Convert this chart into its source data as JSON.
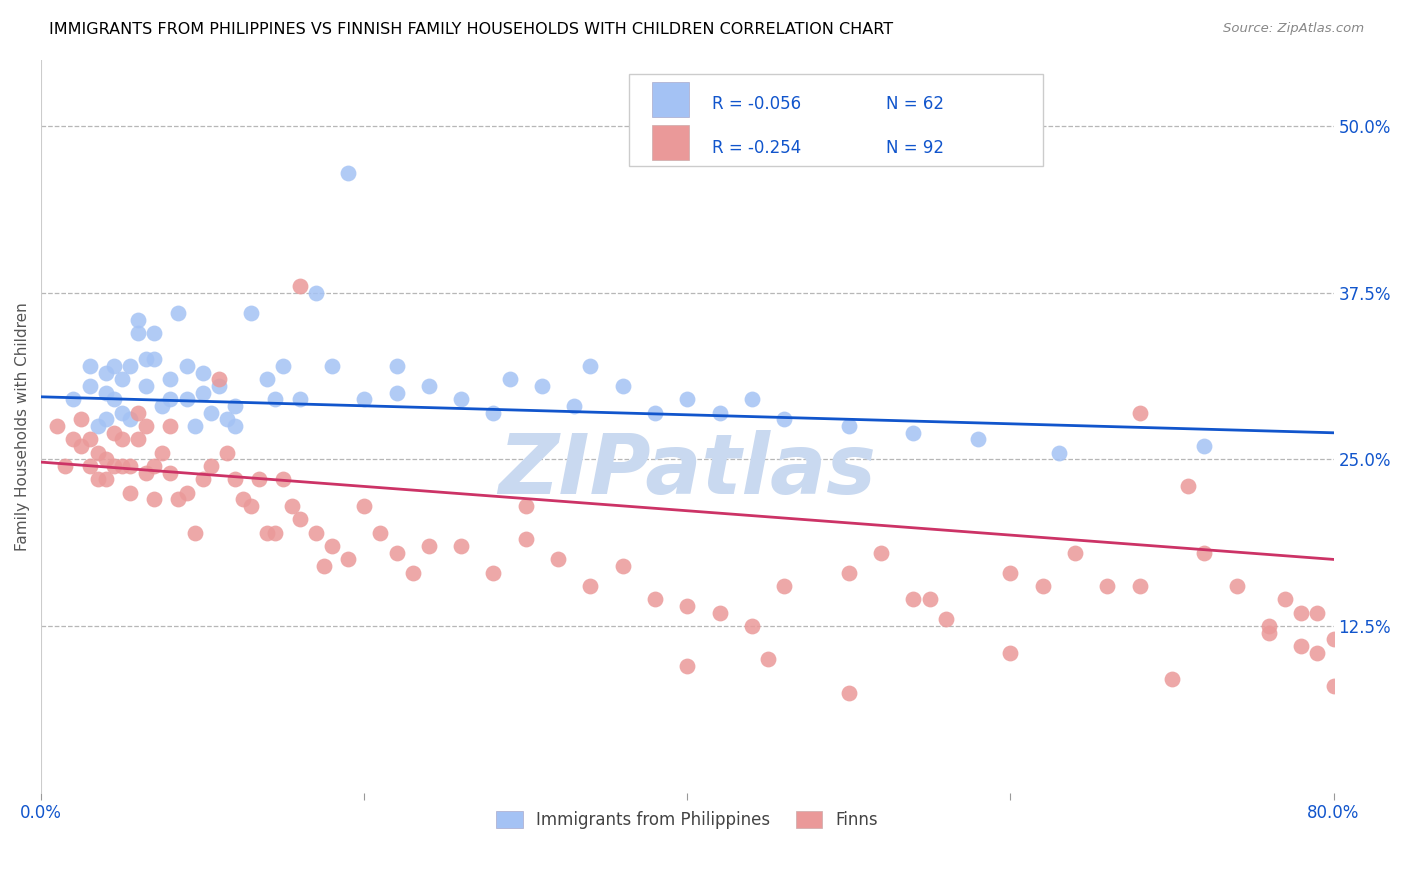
{
  "title": "IMMIGRANTS FROM PHILIPPINES VS FINNISH FAMILY HOUSEHOLDS WITH CHILDREN CORRELATION CHART",
  "source": "Source: ZipAtlas.com",
  "ylabel": "Family Households with Children",
  "ytick_labels": [
    "50.0%",
    "37.5%",
    "25.0%",
    "12.5%"
  ],
  "ytick_values": [
    0.5,
    0.375,
    0.25,
    0.125
  ],
  "legend_blue_r": "-0.056",
  "legend_blue_n": "62",
  "legend_pink_r": "-0.254",
  "legend_pink_n": "92",
  "legend_label_blue": "Immigrants from Philippines",
  "legend_label_pink": "Finns",
  "blue_color": "#a4c2f4",
  "pink_color": "#ea9999",
  "blue_line_color": "#1155cc",
  "pink_line_color": "#cc3366",
  "background_color": "#ffffff",
  "grid_color": "#b7b7b7",
  "title_color": "#000000",
  "axis_label_color": "#1155cc",
  "ylabel_color": "#555555",
  "source_color": "#888888",
  "watermark": "ZIPatlas",
  "watermark_color": "#c9d9f0",
  "xlim": [
    0.0,
    0.8
  ],
  "ylim": [
    0.0,
    0.55
  ],
  "blue_line_x0": 0.0,
  "blue_line_y0": 0.297,
  "blue_line_x1": 0.8,
  "blue_line_y1": 0.27,
  "pink_line_x0": 0.0,
  "pink_line_y0": 0.248,
  "pink_line_x1": 0.8,
  "pink_line_y1": 0.175,
  "blue_x": [
    0.02,
    0.03,
    0.03,
    0.035,
    0.04,
    0.04,
    0.04,
    0.045,
    0.045,
    0.05,
    0.05,
    0.055,
    0.055,
    0.06,
    0.06,
    0.065,
    0.065,
    0.07,
    0.07,
    0.075,
    0.08,
    0.08,
    0.085,
    0.09,
    0.09,
    0.095,
    0.1,
    0.1,
    0.105,
    0.11,
    0.115,
    0.12,
    0.12,
    0.13,
    0.14,
    0.145,
    0.15,
    0.16,
    0.17,
    0.18,
    0.19,
    0.2,
    0.22,
    0.22,
    0.24,
    0.26,
    0.28,
    0.29,
    0.31,
    0.33,
    0.34,
    0.36,
    0.38,
    0.4,
    0.42,
    0.44,
    0.46,
    0.5,
    0.54,
    0.58,
    0.63,
    0.72
  ],
  "blue_y": [
    0.295,
    0.305,
    0.32,
    0.275,
    0.3,
    0.315,
    0.28,
    0.32,
    0.295,
    0.31,
    0.285,
    0.32,
    0.28,
    0.345,
    0.355,
    0.325,
    0.305,
    0.345,
    0.325,
    0.29,
    0.31,
    0.295,
    0.36,
    0.32,
    0.295,
    0.275,
    0.3,
    0.315,
    0.285,
    0.305,
    0.28,
    0.29,
    0.275,
    0.36,
    0.31,
    0.295,
    0.32,
    0.295,
    0.375,
    0.32,
    0.465,
    0.295,
    0.32,
    0.3,
    0.305,
    0.295,
    0.285,
    0.31,
    0.305,
    0.29,
    0.32,
    0.305,
    0.285,
    0.295,
    0.285,
    0.295,
    0.28,
    0.275,
    0.27,
    0.265,
    0.255,
    0.26
  ],
  "pink_x": [
    0.01,
    0.015,
    0.02,
    0.025,
    0.025,
    0.03,
    0.03,
    0.035,
    0.035,
    0.04,
    0.04,
    0.045,
    0.045,
    0.05,
    0.05,
    0.055,
    0.055,
    0.06,
    0.06,
    0.065,
    0.065,
    0.07,
    0.07,
    0.075,
    0.08,
    0.08,
    0.085,
    0.09,
    0.095,
    0.1,
    0.105,
    0.11,
    0.115,
    0.12,
    0.125,
    0.13,
    0.135,
    0.14,
    0.145,
    0.15,
    0.155,
    0.16,
    0.16,
    0.17,
    0.175,
    0.18,
    0.19,
    0.2,
    0.21,
    0.22,
    0.23,
    0.24,
    0.26,
    0.28,
    0.3,
    0.32,
    0.34,
    0.36,
    0.38,
    0.4,
    0.42,
    0.44,
    0.46,
    0.5,
    0.52,
    0.54,
    0.56,
    0.6,
    0.62,
    0.64,
    0.66,
    0.68,
    0.7,
    0.72,
    0.74,
    0.76,
    0.77,
    0.78,
    0.79,
    0.8,
    0.76,
    0.78,
    0.79,
    0.8,
    0.68,
    0.71,
    0.6,
    0.55,
    0.5,
    0.45,
    0.4,
    0.3
  ],
  "pink_y": [
    0.275,
    0.245,
    0.265,
    0.28,
    0.26,
    0.265,
    0.245,
    0.255,
    0.235,
    0.25,
    0.235,
    0.27,
    0.245,
    0.265,
    0.245,
    0.245,
    0.225,
    0.285,
    0.265,
    0.275,
    0.24,
    0.245,
    0.22,
    0.255,
    0.275,
    0.24,
    0.22,
    0.225,
    0.195,
    0.235,
    0.245,
    0.31,
    0.255,
    0.235,
    0.22,
    0.215,
    0.235,
    0.195,
    0.195,
    0.235,
    0.215,
    0.205,
    0.38,
    0.195,
    0.17,
    0.185,
    0.175,
    0.215,
    0.195,
    0.18,
    0.165,
    0.185,
    0.185,
    0.165,
    0.19,
    0.175,
    0.155,
    0.17,
    0.145,
    0.14,
    0.135,
    0.125,
    0.155,
    0.165,
    0.18,
    0.145,
    0.13,
    0.165,
    0.155,
    0.18,
    0.155,
    0.155,
    0.085,
    0.18,
    0.155,
    0.125,
    0.145,
    0.135,
    0.135,
    0.115,
    0.12,
    0.11,
    0.105,
    0.08,
    0.285,
    0.23,
    0.105,
    0.145,
    0.075,
    0.1,
    0.095,
    0.215
  ]
}
